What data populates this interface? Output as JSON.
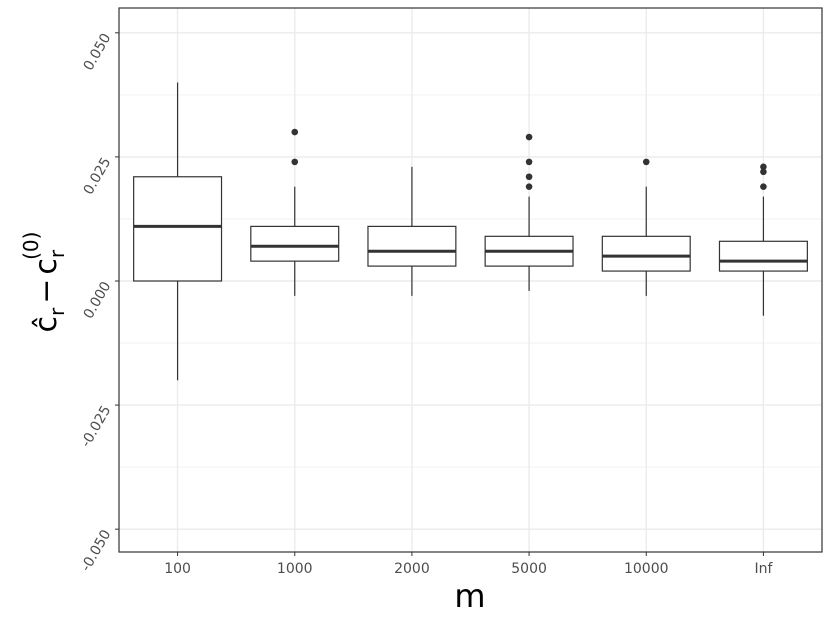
{
  "chart_data": {
    "type": "box",
    "x_label": "m",
    "y_label_parts": [
      "ĉ",
      "r",
      "−",
      "c",
      "r",
      "(0)"
    ],
    "categories": [
      "100",
      "1000",
      "2000",
      "5000",
      "10000",
      "Inf"
    ],
    "boxes": [
      {
        "whisker_low": -0.02,
        "q1": 0.0,
        "median": 0.011,
        "q3": 0.021,
        "whisker_high": 0.04,
        "outliers": []
      },
      {
        "whisker_low": -0.003,
        "q1": 0.004,
        "median": 0.007,
        "q3": 0.011,
        "whisker_high": 0.019,
        "outliers": [
          0.03,
          0.024
        ]
      },
      {
        "whisker_low": -0.003,
        "q1": 0.003,
        "median": 0.006,
        "q3": 0.011,
        "whisker_high": 0.023,
        "outliers": []
      },
      {
        "whisker_low": -0.002,
        "q1": 0.003,
        "median": 0.006,
        "q3": 0.009,
        "whisker_high": 0.017,
        "outliers": [
          0.029,
          0.024,
          0.021,
          0.019
        ]
      },
      {
        "whisker_low": -0.003,
        "q1": 0.002,
        "median": 0.005,
        "q3": 0.009,
        "whisker_high": 0.019,
        "outliers": [
          0.024
        ]
      },
      {
        "whisker_low": -0.007,
        "q1": 0.002,
        "median": 0.004,
        "q3": 0.008,
        "whisker_high": 0.017,
        "outliers": [
          0.023,
          0.022,
          0.019
        ]
      }
    ],
    "color": "#333333",
    "ylim": [
      -0.0546,
      0.055
    ],
    "yticks": [
      {
        "value": -0.05,
        "label": "-0.050"
      },
      {
        "value": -0.025,
        "label": "-0.025"
      },
      {
        "value": 0,
        "label": "0.000"
      },
      {
        "value": 0.025,
        "label": "0.025"
      },
      {
        "value": 0.05,
        "label": "0.050"
      }
    ],
    "grid": true
  }
}
